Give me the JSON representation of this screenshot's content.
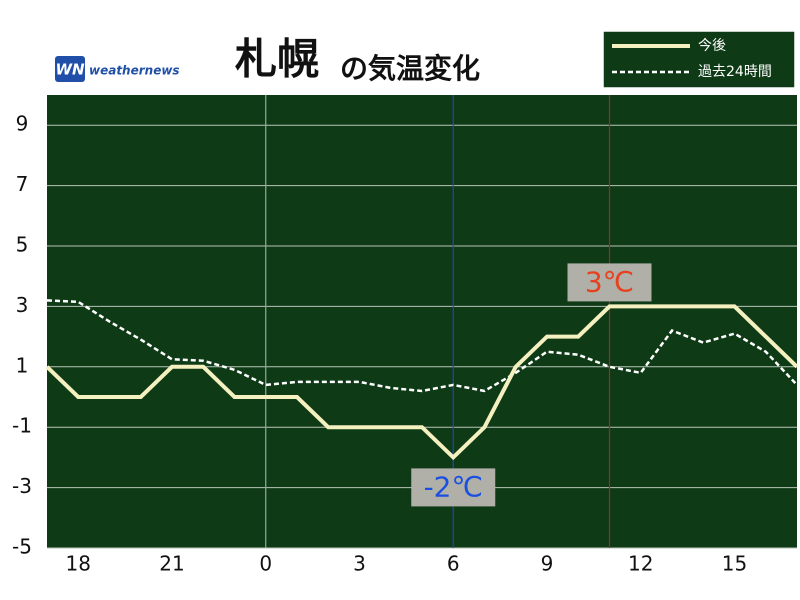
{
  "chart_data": {
    "type": "line",
    "title_parts": [
      "札幌",
      "の気温変化"
    ],
    "logo": {
      "mark": "WN",
      "text": "weathernews"
    },
    "x": [
      -7,
      -6,
      -5,
      -4,
      -3,
      -2,
      -1,
      0,
      1,
      2,
      3,
      4,
      5,
      6,
      7,
      8,
      9,
      10,
      11,
      12,
      13,
      14,
      15,
      16,
      17
    ],
    "series": [
      {
        "name": "今後",
        "color": "#f5f0c0",
        "dashed": false,
        "values": [
          1,
          0,
          0,
          0,
          1,
          1,
          0,
          0,
          0,
          -1,
          -1,
          -1,
          -1,
          -2,
          -1,
          1,
          2,
          2,
          3,
          3,
          3,
          3,
          3,
          2,
          1
        ]
      },
      {
        "name": "過去24時間",
        "color": "#ffffff",
        "dashed": true,
        "values": [
          3.2,
          3.15,
          2.5,
          1.9,
          1.25,
          1.2,
          0.9,
          0.4,
          0.5,
          0.5,
          0.5,
          0.3,
          0.2,
          0.4,
          0.2,
          0.8,
          1.5,
          1.4,
          1.0,
          0.8,
          2.2,
          1.8,
          2.1,
          1.5,
          0.4
        ]
      }
    ],
    "xlim": [
      -7,
      17
    ],
    "xticks": [
      {
        "value": -6,
        "label": "18"
      },
      {
        "value": -3,
        "label": "21"
      },
      0,
      3,
      6,
      9,
      12,
      15
    ],
    "ylim": [
      -5,
      10
    ],
    "yticks": [
      9,
      7,
      5,
      3,
      1,
      -1,
      -3,
      -5
    ],
    "grid": true,
    "vlines": [
      {
        "x": 0,
        "color": "#9aa89a"
      },
      {
        "x": 6,
        "color": "#2a3fc0"
      },
      {
        "x": 11,
        "color": "#a02a1a"
      }
    ],
    "annotations": [
      {
        "text": "3℃",
        "x": 11,
        "y": 3,
        "color": "#e8401c",
        "position": "above"
      },
      {
        "text": "-2℃",
        "x": 6,
        "y": -2,
        "color": "#1a4fe0",
        "position": "below"
      }
    ],
    "legend": "top-right"
  }
}
